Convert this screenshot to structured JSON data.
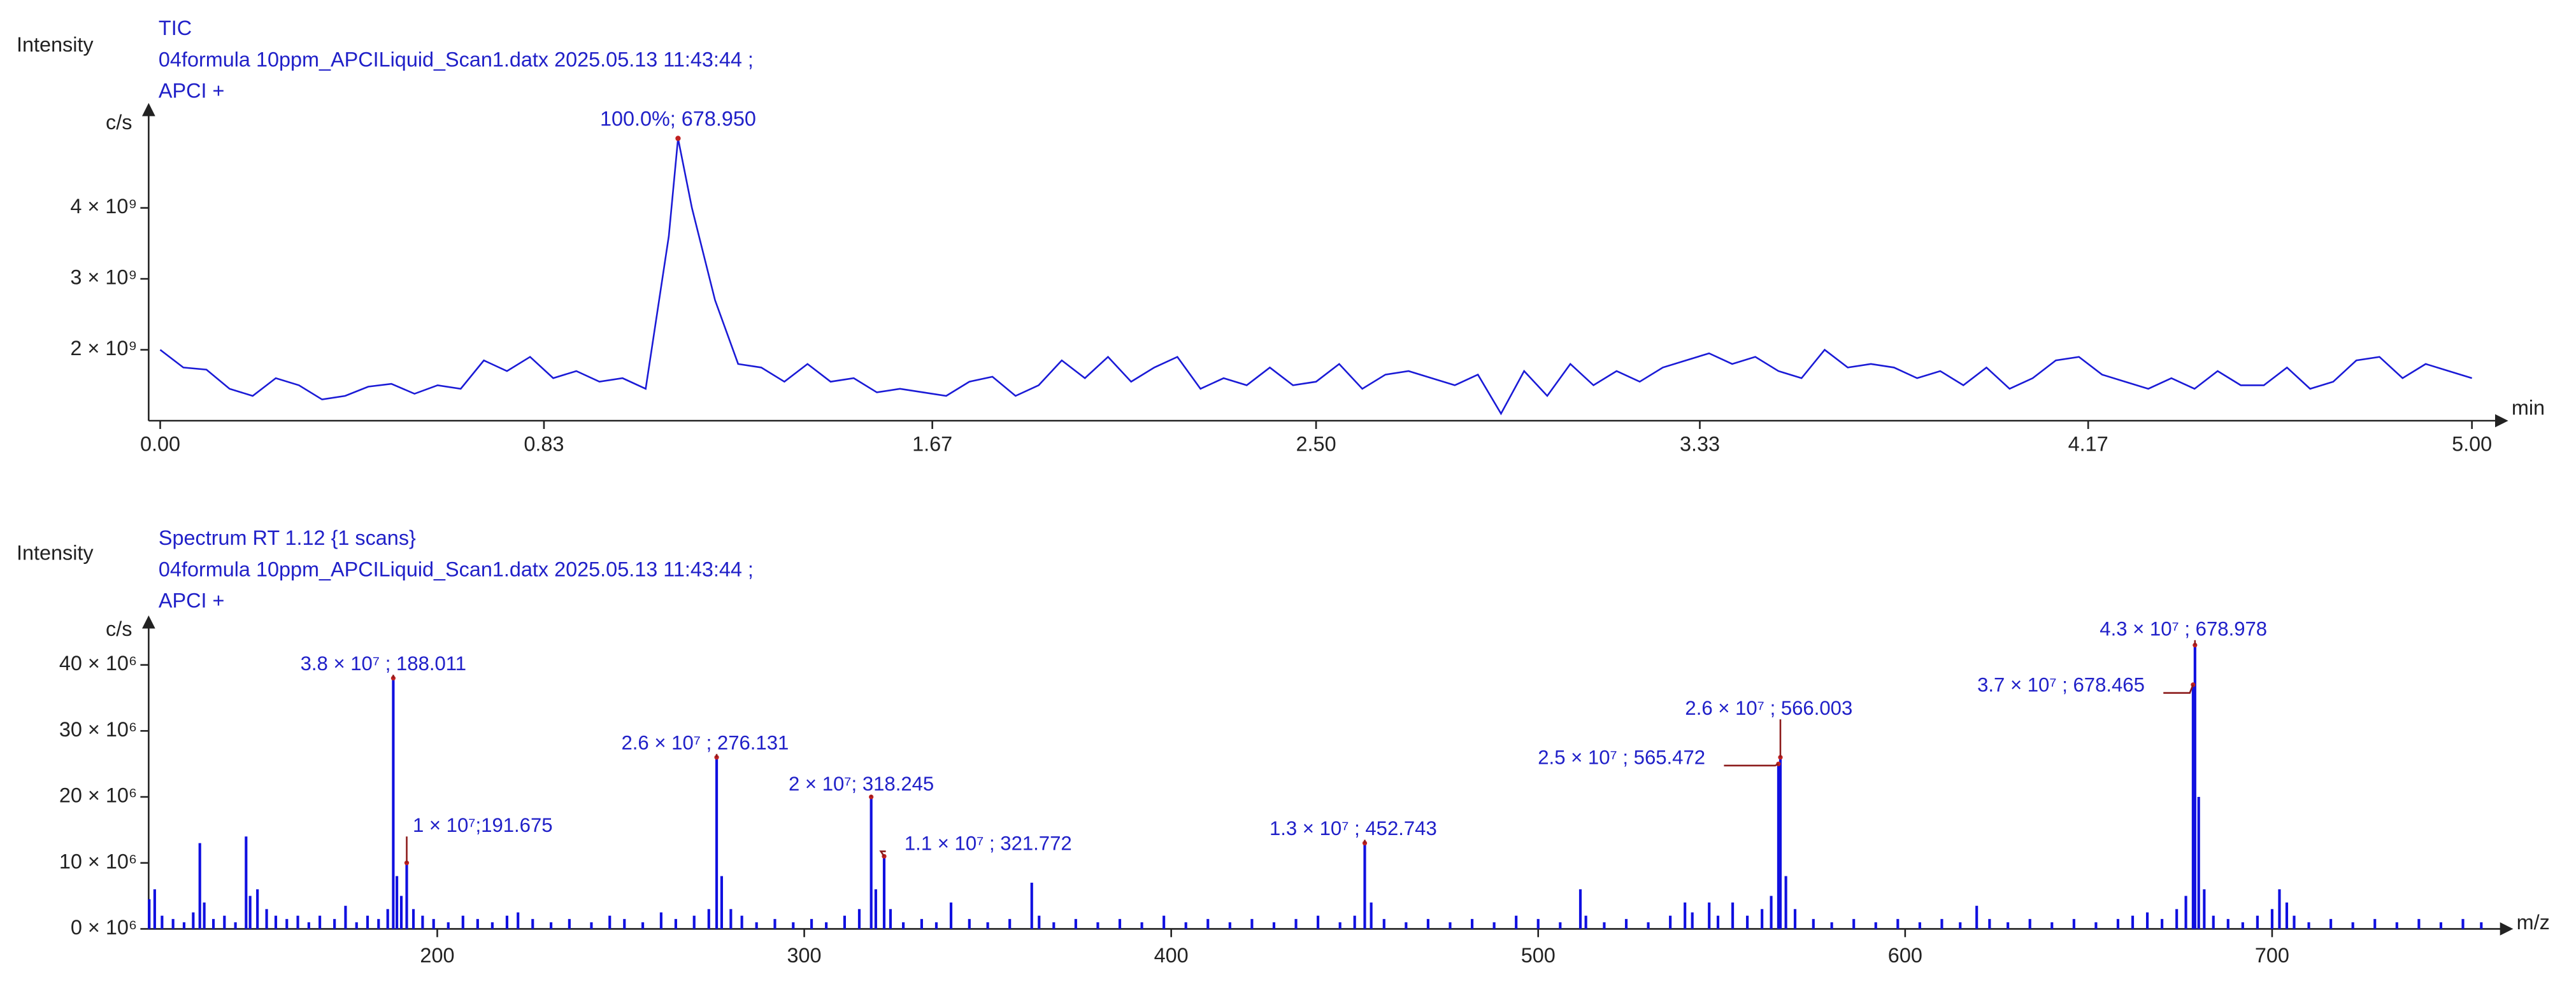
{
  "chart_data": [
    {
      "type": "line",
      "title": "TIC",
      "subtitle": [
        "04formula 10ppm_APCILiquid_Scan1.datx 2025.05.13 11:43:44 ;",
        "APCI +"
      ],
      "y_label": "Intensity",
      "y_unit": "c/s",
      "x_label": "min",
      "color": "#1a1ad6",
      "x": [
        0,
        0.05,
        0.1,
        0.15,
        0.2,
        0.25,
        0.3,
        0.35,
        0.4,
        0.45,
        0.5,
        0.55,
        0.6,
        0.65,
        0.7,
        0.75,
        0.8,
        0.85,
        0.9,
        0.95,
        1,
        1.05,
        1.1,
        1.12,
        1.15,
        1.2,
        1.25,
        1.3,
        1.35,
        1.4,
        1.45,
        1.5,
        1.55,
        1.6,
        1.65,
        1.7,
        1.75,
        1.8,
        1.85,
        1.9,
        1.95,
        2,
        2.05,
        2.1,
        2.15,
        2.2,
        2.25,
        2.3,
        2.35,
        2.4,
        2.45,
        2.5,
        2.55,
        2.6,
        2.65,
        2.7,
        2.75,
        2.8,
        2.85,
        2.9,
        2.95,
        3,
        3.05,
        3.1,
        3.15,
        3.2,
        3.25,
        3.3,
        3.35,
        3.4,
        3.45,
        3.5,
        3.55,
        3.6,
        3.65,
        3.7,
        3.75,
        3.8,
        3.85,
        3.9,
        3.95,
        4,
        4.05,
        4.1,
        4.15,
        4.2,
        4.25,
        4.3,
        4.35,
        4.4,
        4.45,
        4.5,
        4.55,
        4.6,
        4.65,
        4.7,
        4.75,
        4.8,
        4.85,
        4.9,
        4.95,
        5
      ],
      "values": [
        2000000000.0,
        1750000000.0,
        1720000000.0,
        1450000000.0,
        1350000000.0,
        1600000000.0,
        1500000000.0,
        1300000000.0,
        1350000000.0,
        1480000000.0,
        1520000000.0,
        1380000000.0,
        1500000000.0,
        1450000000.0,
        1850000000.0,
        1700000000.0,
        1900000000.0,
        1600000000.0,
        1700000000.0,
        1550000000.0,
        1600000000.0,
        1450000000.0,
        3600000000.0,
        4980000000.0,
        4000000000.0,
        2700000000.0,
        1800000000.0,
        1750000000.0,
        1550000000.0,
        1800000000.0,
        1550000000.0,
        1600000000.0,
        1400000000.0,
        1450000000.0,
        1400000000.0,
        1350000000.0,
        1550000000.0,
        1620000000.0,
        1350000000.0,
        1500000000.0,
        1850000000.0,
        1600000000.0,
        1900000000.0,
        1550000000.0,
        1750000000.0,
        1900000000.0,
        1450000000.0,
        1600000000.0,
        1500000000.0,
        1750000000.0,
        1500000000.0,
        1550000000.0,
        1800000000.0,
        1450000000.0,
        1650000000.0,
        1700000000.0,
        1600000000.0,
        1500000000.0,
        1650000000.0,
        1100000000.0,
        1700000000.0,
        1350000000.0,
        1800000000.0,
        1500000000.0,
        1700000000.0,
        1550000000.0,
        1750000000.0,
        1850000000.0,
        1950000000.0,
        1800000000.0,
        1900000000.0,
        1700000000.0,
        1600000000.0,
        2000000000.0,
        1750000000.0,
        1800000000.0,
        1750000000.0,
        1600000000.0,
        1700000000.0,
        1500000000.0,
        1750000000.0,
        1450000000.0,
        1600000000.0,
        1850000000.0,
        1900000000.0,
        1650000000.0,
        1550000000.0,
        1450000000.0,
        1600000000.0,
        1450000000.0,
        1700000000.0,
        1500000000.0,
        1500000000.0,
        1750000000.0,
        1450000000.0,
        1550000000.0,
        1850000000.0,
        1900000000.0,
        1600000000.0,
        1800000000.0,
        1700000000.0,
        1600000000.0
      ],
      "xlim": [
        0,
        5
      ],
      "xticks": [
        {
          "value": 0,
          "label": "0.00"
        },
        0.83,
        1.67,
        {
          "value": 2.5,
          "label": "2.50"
        },
        3.33,
        4.17,
        {
          "value": 5,
          "label": "5.00"
        }
      ],
      "ylim": [
        1000000000.0,
        5200000000.0
      ],
      "yticks": [
        {
          "value": 2000000000.0,
          "label": "2 × 10⁹"
        },
        {
          "value": 3000000000.0,
          "label": "3 × 10⁹"
        },
        {
          "value": 4000000000.0,
          "label": "4 × 10⁹"
        }
      ],
      "annotations": [
        {
          "text": "100.0%; 678.950",
          "x": 1.12,
          "y": 4980000000.0
        }
      ]
    },
    {
      "type": "spectrum",
      "title": "Spectrum RT 1.12 {1 scans}",
      "subtitle": [
        "04formula 10ppm_APCILiquid_Scan1.datx 2025.05.13 11:43:44 ;",
        "APCI +"
      ],
      "y_label": "Intensity",
      "y_unit": "c/s",
      "x_label": "m/z",
      "color": "#1010e0",
      "x": [
        121.5,
        123,
        125,
        128,
        131,
        133.5,
        135.3,
        136.5,
        139,
        142,
        145,
        147.9,
        149,
        151,
        153.5,
        156,
        159,
        162,
        165,
        168,
        172,
        175,
        178,
        181,
        184,
        186.5,
        188.011,
        189,
        190.2,
        191.675,
        193.5,
        196,
        199,
        203,
        207,
        211,
        215,
        219,
        222,
        226,
        231,
        236,
        242,
        247,
        251,
        256,
        261,
        265,
        270,
        274,
        276.131,
        277.5,
        280,
        283,
        287,
        292,
        297,
        302,
        306,
        311,
        315,
        318.245,
        319.5,
        321.772,
        323.5,
        327,
        332,
        336,
        340,
        345,
        350,
        356,
        362,
        364,
        368,
        374,
        380,
        386,
        392,
        398,
        404,
        410,
        416,
        422,
        428,
        434,
        440,
        446,
        450,
        452.743,
        454.5,
        458,
        464,
        470,
        476,
        482,
        488,
        494,
        500,
        506,
        511.5,
        513,
        518,
        524,
        530,
        536,
        540,
        542,
        546.6,
        549,
        553,
        557,
        561,
        563.5,
        565.472,
        566.003,
        567.5,
        570,
        575,
        580,
        586,
        592,
        598,
        604,
        610,
        615,
        619.5,
        623,
        628,
        634,
        640,
        646,
        652,
        658,
        662,
        666,
        670,
        674,
        676.5,
        678.465,
        678.978,
        680,
        681.5,
        684,
        688,
        692,
        696,
        700,
        702,
        704,
        706,
        710,
        716,
        722,
        728,
        734,
        740,
        746,
        752,
        757
      ],
      "values": [
        4500000.0,
        6000000.0,
        2000000.0,
        1500000.0,
        1000000.0,
        2500000.0,
        13000000.0,
        4000000.0,
        1500000.0,
        2000000.0,
        1000000.0,
        14000000.0,
        5000000.0,
        6000000.0,
        3000000.0,
        2000000.0,
        1500000.0,
        2000000.0,
        1000000.0,
        2000000.0,
        1500000.0,
        3500000.0,
        1000000.0,
        2000000.0,
        1500000.0,
        3000000.0,
        38000000.0,
        8000000.0,
        5000000.0,
        10000000.0,
        3000000.0,
        2000000.0,
        1500000.0,
        1000000.0,
        2000000.0,
        1500000.0,
        1000000.0,
        2000000.0,
        2500000.0,
        1500000.0,
        1000000.0,
        1500000.0,
        1000000.0,
        2000000.0,
        1500000.0,
        1000000.0,
        2500000.0,
        1500000.0,
        2000000.0,
        3000000.0,
        26000000.0,
        8000000.0,
        3000000.0,
        2000000.0,
        1000000.0,
        1500000.0,
        1000000.0,
        1500000.0,
        1000000.0,
        2000000.0,
        3000000.0,
        20000000.0,
        6000000.0,
        11000000.0,
        3000000.0,
        1000000.0,
        1500000.0,
        1000000.0,
        4000000.0,
        1500000.0,
        1000000.0,
        1500000.0,
        7000000.0,
        2000000.0,
        1000000.0,
        1500000.0,
        1000000.0,
        1500000.0,
        1000000.0,
        2000000.0,
        1000000.0,
        1500000.0,
        1000000.0,
        1500000.0,
        1000000.0,
        1500000.0,
        2000000.0,
        1000000.0,
        2000000.0,
        13000000.0,
        4000000.0,
        1500000.0,
        1000000.0,
        1500000.0,
        1000000.0,
        1500000.0,
        1000000.0,
        2000000.0,
        1500000.0,
        1000000.0,
        6000000.0,
        2000000.0,
        1000000.0,
        1500000.0,
        1000000.0,
        2000000.0,
        4000000.0,
        2500000.0,
        4000000.0,
        2000000.0,
        4000000.0,
        2000000.0,
        3000000.0,
        5000000.0,
        25000000.0,
        26000000.0,
        8000000.0,
        3000000.0,
        1500000.0,
        1000000.0,
        1500000.0,
        1000000.0,
        1500000.0,
        1000000.0,
        1500000.0,
        1000000.0,
        3500000.0,
        1500000.0,
        1000000.0,
        1500000.0,
        1000000.0,
        1500000.0,
        1000000.0,
        1500000.0,
        2000000.0,
        2500000.0,
        1500000.0,
        3000000.0,
        5000000.0,
        37000000.0,
        43000000.0,
        20000000.0,
        6000000.0,
        2000000.0,
        1500000.0,
        1000000.0,
        2000000.0,
        3000000.0,
        6000000.0,
        4000000.0,
        2000000.0,
        1000000.0,
        1500000.0,
        1000000.0,
        1500000.0,
        1000000.0,
        1500000.0,
        1000000.0,
        1500000.0,
        1000000.0
      ],
      "xlim": [
        120,
        763
      ],
      "xticks": [
        200,
        300,
        400,
        500,
        600,
        700
      ],
      "ylim": [
        0,
        44500000.0
      ],
      "yticks": [
        {
          "value": 0,
          "label": "0 × 10⁶"
        },
        {
          "value": 10000000.0,
          "label": "10 × 10⁶"
        },
        {
          "value": 20000000.0,
          "label": "20 × 10⁶"
        },
        {
          "value": 30000000.0,
          "label": "30 × 10⁶"
        },
        {
          "value": 40000000.0,
          "label": "40 × 10⁶"
        }
      ],
      "annotations": [
        {
          "text": "3.8 × 10⁷ ; 188.011",
          "x": 188.011,
          "y": 38000000.0
        },
        {
          "text": "1 × 10⁷;191.675",
          "x": 191.675,
          "y": 10000000.0
        },
        {
          "text": "2.6 × 10⁷ ; 276.131",
          "x": 276.131,
          "y": 26000000.0
        },
        {
          "text": "2 × 10⁷; 318.245",
          "x": 318.245,
          "y": 20000000.0
        },
        {
          "text": "1.1 × 10⁷ ; 321.772",
          "x": 321.772,
          "y": 11000000.0
        },
        {
          "text": "1.3 × 10⁷ ; 452.743",
          "x": 452.743,
          "y": 13000000.0
        },
        {
          "text": "2.5 × 10⁷ ; 565.472",
          "x": 565.472,
          "y": 25000000.0
        },
        {
          "text": "2.6 × 10⁷ ; 566.003",
          "x": 566.003,
          "y": 26000000.0
        },
        {
          "text": "3.7 × 10⁷ ; 678.465",
          "x": 678.465,
          "y": 37000000.0
        },
        {
          "text": "4.3 × 10⁷ ; 678.978",
          "x": 678.978,
          "y": 43000000.0
        }
      ]
    }
  ]
}
